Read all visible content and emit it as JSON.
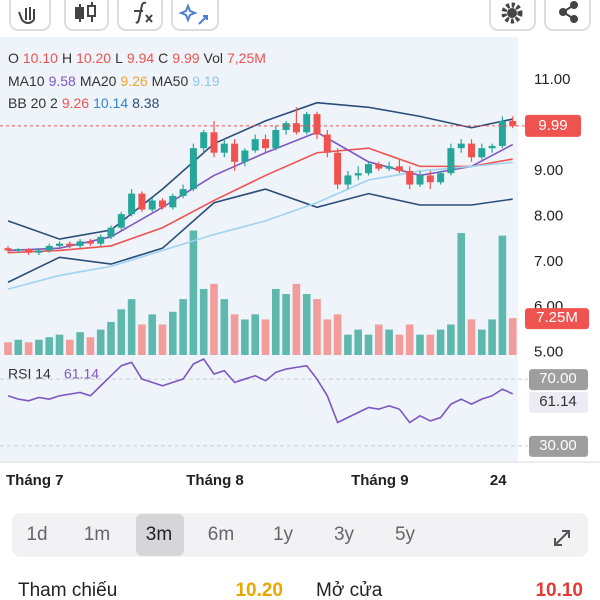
{
  "chart_data": {
    "type": "candlestick",
    "info": [
      [
        {
          "text": "O"
        },
        {
          "text": "10.10",
          "color": "#ef5350"
        },
        {
          "text": "H"
        },
        {
          "text": "10.20",
          "color": "#ef5350"
        },
        {
          "text": "L"
        },
        {
          "text": "9.94",
          "color": "#ef5350"
        },
        {
          "text": "C"
        },
        {
          "text": "9.99",
          "color": "#ef5350"
        },
        {
          "text": "Vol"
        },
        {
          "text": "7,25M",
          "color": "#ef5350"
        }
      ],
      [
        {
          "text": "MA10"
        },
        {
          "text": "9.58",
          "color": "#7e57c2"
        },
        {
          "text": "MA20"
        },
        {
          "text": "9.26",
          "color": "#f0a030"
        },
        {
          "text": "MA50"
        },
        {
          "text": "9.19",
          "color": "#8ec8ee"
        }
      ],
      [
        {
          "text": "BB 20 2"
        },
        {
          "text": "9.26",
          "color": "#ef5350"
        },
        {
          "text": "10.14",
          "color": "#2f86c8"
        },
        {
          "text": "8.38",
          "color": "#2a4d7a"
        }
      ]
    ],
    "colors": {
      "up": "#26a69a",
      "down": "#ef5350",
      "up_volume": "#5fb8ae",
      "down_volume": "#f29c9c"
    },
    "candles": [
      [
        7.3,
        7.35,
        7.2,
        7.25
      ],
      [
        7.25,
        7.3,
        7.2,
        7.28
      ],
      [
        7.28,
        7.3,
        7.15,
        7.2
      ],
      [
        7.2,
        7.3,
        7.15,
        7.25
      ],
      [
        7.25,
        7.4,
        7.2,
        7.35
      ],
      [
        7.35,
        7.45,
        7.3,
        7.4
      ],
      [
        7.4,
        7.45,
        7.3,
        7.35
      ],
      [
        7.35,
        7.5,
        7.3,
        7.45
      ],
      [
        7.45,
        7.5,
        7.35,
        7.4
      ],
      [
        7.4,
        7.6,
        7.35,
        7.55
      ],
      [
        7.55,
        7.8,
        7.5,
        7.75
      ],
      [
        7.75,
        8.1,
        7.7,
        8.05
      ],
      [
        8.05,
        8.6,
        8.0,
        8.5
      ],
      [
        8.5,
        8.55,
        8.1,
        8.15
      ],
      [
        8.15,
        8.4,
        8.1,
        8.35
      ],
      [
        8.35,
        8.4,
        8.15,
        8.2
      ],
      [
        8.2,
        8.5,
        8.15,
        8.45
      ],
      [
        8.45,
        8.7,
        8.4,
        8.6
      ],
      [
        8.6,
        9.6,
        8.55,
        9.5
      ],
      [
        9.5,
        9.9,
        9.4,
        9.85
      ],
      [
        9.85,
        10.1,
        9.3,
        9.4
      ],
      [
        9.4,
        9.7,
        9.3,
        9.6
      ],
      [
        9.6,
        9.7,
        9.0,
        9.2
      ],
      [
        9.2,
        9.5,
        9.1,
        9.45
      ],
      [
        9.45,
        9.8,
        9.4,
        9.7
      ],
      [
        9.7,
        9.8,
        9.4,
        9.5
      ],
      [
        9.5,
        10.0,
        9.45,
        9.9
      ],
      [
        9.9,
        10.1,
        9.8,
        10.05
      ],
      [
        10.05,
        10.4,
        9.8,
        9.85
      ],
      [
        9.85,
        10.3,
        9.8,
        10.25
      ],
      [
        10.25,
        10.3,
        9.7,
        9.8
      ],
      [
        9.8,
        9.9,
        9.3,
        9.4
      ],
      [
        9.4,
        9.5,
        8.6,
        8.7
      ],
      [
        8.7,
        9.0,
        8.6,
        8.9
      ],
      [
        8.9,
        9.1,
        8.8,
        8.95
      ],
      [
        8.95,
        9.2,
        8.9,
        9.15
      ],
      [
        9.15,
        9.2,
        9.0,
        9.05
      ],
      [
        9.05,
        9.2,
        9.0,
        9.1
      ],
      [
        9.1,
        9.25,
        8.95,
        9.0
      ],
      [
        9.0,
        9.1,
        8.6,
        8.7
      ],
      [
        8.7,
        9.0,
        8.65,
        8.9
      ],
      [
        8.9,
        9.0,
        8.6,
        8.75
      ],
      [
        8.75,
        9.0,
        8.7,
        8.95
      ],
      [
        8.95,
        9.6,
        8.9,
        9.5
      ],
      [
        9.5,
        9.7,
        9.4,
        9.6
      ],
      [
        9.6,
        9.7,
        9.2,
        9.3
      ],
      [
        9.3,
        9.6,
        9.25,
        9.5
      ],
      [
        9.5,
        9.6,
        9.4,
        9.55
      ],
      [
        9.55,
        10.2,
        9.5,
        10.1
      ],
      [
        10.1,
        10.2,
        9.94,
        9.99
      ]
    ],
    "ylim": [
      4.95,
      11.88
    ],
    "yticks": [
      {
        "value": 11,
        "label": "11.00"
      },
      {
        "value": 10,
        "label": "10.00"
      },
      {
        "value": 9,
        "label": "9.00"
      },
      {
        "value": 8,
        "label": "8.00"
      },
      {
        "value": 7,
        "label": "7.00"
      },
      {
        "value": 6,
        "label": "6.00"
      },
      {
        "value": 5,
        "label": "5.00"
      }
    ],
    "last_price": {
      "value": 9.99,
      "label": "9.99"
    },
    "lines": [
      {
        "color": "#2a4d7a",
        "x": [
          0,
          5,
          10,
          15,
          20,
          25,
          30,
          35,
          40,
          45,
          49
        ],
        "values": [
          7.9,
          7.5,
          7.7,
          8.6,
          9.6,
          10.1,
          10.5,
          10.4,
          10.2,
          9.95,
          10.14
        ]
      },
      {
        "color": "#2a4d7a",
        "x": [
          0,
          5,
          10,
          15,
          20,
          25,
          30,
          35,
          40,
          45,
          49
        ],
        "values": [
          6.55,
          7.1,
          6.95,
          7.3,
          8.3,
          8.6,
          8.2,
          8.5,
          8.25,
          8.25,
          8.38
        ]
      },
      {
        "color": "#ef5350",
        "x": [
          0,
          5,
          10,
          15,
          20,
          25,
          30,
          35,
          40,
          45,
          49
        ],
        "values": [
          7.2,
          7.25,
          7.35,
          7.75,
          8.35,
          8.9,
          9.4,
          9.5,
          9.1,
          9.1,
          9.26
        ]
      },
      {
        "color": "#7e57c2",
        "x": [
          0,
          5,
          10,
          15,
          20,
          25,
          30,
          35,
          40,
          45,
          49
        ],
        "values": [
          7.25,
          7.3,
          7.55,
          8.2,
          8.9,
          9.4,
          9.85,
          9.2,
          8.9,
          9.1,
          9.58
        ]
      },
      {
        "color": "#9fd3f2",
        "x": [
          0,
          5,
          10,
          15,
          20,
          25,
          30,
          35,
          40,
          45,
          49
        ],
        "values": [
          6.4,
          6.7,
          6.9,
          7.25,
          7.6,
          7.9,
          8.3,
          8.8,
          9.0,
          9.1,
          9.19
        ]
      }
    ],
    "volume": {
      "ylim": [
        0,
        62
      ],
      "values": [
        2.5,
        3,
        2.5,
        3,
        3.5,
        4,
        3,
        4.5,
        3.5,
        5,
        6.5,
        9,
        11,
        6,
        8,
        6,
        8.5,
        11,
        24.5,
        13,
        14,
        11,
        8,
        7,
        8,
        7,
        13,
        12,
        14,
        12,
        11,
        7,
        8,
        4,
        5,
        4,
        6,
        5,
        4,
        6,
        4,
        4,
        5,
        6,
        24,
        7,
        5,
        7,
        23.5,
        7.25
      ],
      "last": {
        "value": 7.25,
        "label": "7.25M"
      }
    },
    "rsi": {
      "title": "RSI 14",
      "value_text": "61.14",
      "color": "#7e57c2",
      "ylim": [
        15,
        85
      ],
      "yticks": [
        {
          "value": 70,
          "label": "70.00"
        },
        {
          "value": 30,
          "label": "30.00"
        }
      ],
      "values": [
        60,
        58,
        57,
        59,
        58,
        60,
        61,
        62,
        60,
        66,
        72,
        78,
        80,
        70,
        68,
        66,
        68,
        70,
        79,
        82,
        73,
        75,
        68,
        70,
        72,
        69,
        74,
        76,
        77,
        78,
        70,
        60,
        44,
        47,
        50,
        53,
        52,
        54,
        52,
        44,
        48,
        45,
        47,
        55,
        58,
        55,
        58,
        60,
        64,
        61.14
      ],
      "last": {
        "value": 61.14,
        "label": "61.14"
      }
    },
    "xticks": [
      {
        "value": 2.6,
        "label": "Tháng 7"
      },
      {
        "value": 20.1,
        "label": "Tháng 8"
      },
      {
        "value": 36.1,
        "label": "Tháng 9"
      },
      {
        "value": 47.6,
        "label": "24"
      }
    ]
  },
  "periods": {
    "options": [
      "1d",
      "1m",
      "3m",
      "6m",
      "1y",
      "3y",
      "5y"
    ],
    "selected": 2
  },
  "footer": {
    "ref_label": "Tham chiếu",
    "ref_value": "10.20",
    "open_label": "Mở cửa",
    "open_value": "10.10"
  }
}
